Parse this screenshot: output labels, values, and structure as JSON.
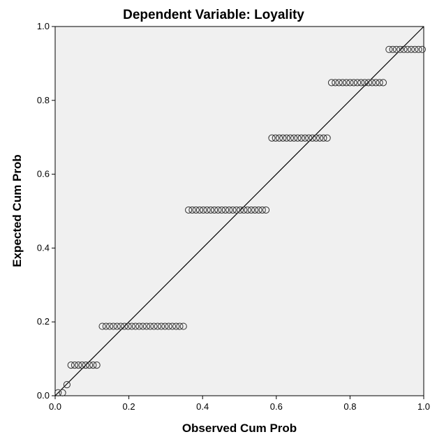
{
  "chart_data": {
    "type": "scatter",
    "title": "Dependent Variable: Loyality",
    "xlabel": "Observed Cum Prob",
    "ylabel": "Expected Cum Prob",
    "xlim": [
      0.0,
      1.0
    ],
    "ylim": [
      0.0,
      1.0
    ],
    "x_ticks": [
      "0.0",
      "0.2",
      "0.4",
      "0.6",
      "0.8",
      "1.0"
    ],
    "y_ticks": [
      "0.0",
      "0.2",
      "0.4",
      "0.6",
      "0.8",
      "1.0"
    ],
    "grid": false,
    "reference_line": [
      [
        0.0,
        0.0
      ],
      [
        1.0,
        1.0
      ]
    ],
    "colors": {
      "plot_background": "#f0f0f0",
      "marker_stroke": "#303030",
      "line": "#000000"
    },
    "groups": [
      {
        "y": 0.008,
        "x_values": [
          0.008,
          0.02
        ]
      },
      {
        "y": 0.03,
        "x_values": [
          0.032
        ]
      },
      {
        "y": 0.083,
        "x_values": [
          0.043,
          0.053,
          0.063,
          0.073,
          0.083,
          0.093,
          0.103,
          0.113
        ]
      },
      {
        "y": 0.188,
        "x_values": [
          0.128,
          0.138,
          0.148,
          0.158,
          0.168,
          0.178,
          0.188,
          0.198,
          0.208,
          0.218,
          0.228,
          0.238,
          0.248,
          0.258,
          0.268,
          0.278,
          0.288,
          0.298,
          0.308,
          0.318,
          0.328,
          0.338,
          0.348
        ]
      },
      {
        "y": 0.503,
        "x_values": [
          0.362,
          0.372,
          0.382,
          0.392,
          0.402,
          0.412,
          0.422,
          0.432,
          0.442,
          0.452,
          0.462,
          0.472,
          0.482,
          0.492,
          0.502,
          0.512,
          0.522,
          0.532,
          0.542,
          0.552,
          0.562,
          0.572
        ]
      },
      {
        "y": 0.698,
        "x_values": [
          0.588,
          0.598,
          0.608,
          0.618,
          0.628,
          0.638,
          0.648,
          0.658,
          0.668,
          0.678,
          0.688,
          0.698,
          0.708,
          0.718,
          0.728,
          0.738
        ]
      },
      {
        "y": 0.848,
        "x_values": [
          0.75,
          0.76,
          0.77,
          0.78,
          0.79,
          0.8,
          0.81,
          0.82,
          0.83,
          0.84,
          0.85,
          0.86,
          0.87,
          0.88,
          0.89
        ]
      },
      {
        "y": 0.938,
        "x_values": [
          0.906,
          0.916,
          0.926,
          0.936,
          0.946,
          0.956,
          0.966,
          0.976,
          0.986,
          0.996
        ]
      }
    ]
  }
}
